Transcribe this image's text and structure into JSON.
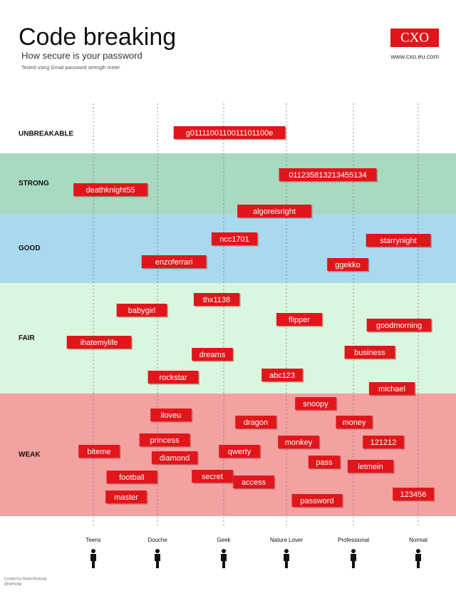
{
  "header": {
    "title": "Code breaking",
    "subtitle": "How secure is your password",
    "note": "Tested using Gmail password strength meter",
    "logo": "CXO",
    "url": "www.cxo.eu.com"
  },
  "bands": [
    {
      "label": "UNBREAKABLE",
      "passwords": [
        "g0111100110011101100e"
      ]
    },
    {
      "label": "STRONG",
      "passwords": [
        "011235813213455134",
        "deathknight55",
        "algoreisright"
      ]
    },
    {
      "label": "GOOD",
      "passwords": [
        "ncc1701",
        "starrynight",
        "enzoferrari",
        "ggekko"
      ]
    },
    {
      "label": "FAIR",
      "passwords": [
        "thx1138",
        "babygirl",
        "flipper",
        "goodmorning",
        "ihatemylife",
        "dreams",
        "business",
        "rockstar",
        "abc123",
        "michael"
      ]
    },
    {
      "label": "WEAK",
      "passwords": [
        "snoopy",
        "iloveu",
        "dragon",
        "money",
        "princess",
        "monkey",
        "121212",
        "biteme",
        "qwerty",
        "diamond",
        "pass",
        "letmein",
        "football",
        "secret",
        "access",
        "master",
        "password",
        "123456"
      ]
    }
  ],
  "personas": [
    "Teens",
    "Douche",
    "Geek",
    "Nature Lover",
    "Professional",
    "Normal"
  ],
  "credit": [
    "Created by Robin Richards",
    "@ripetungi"
  ]
}
